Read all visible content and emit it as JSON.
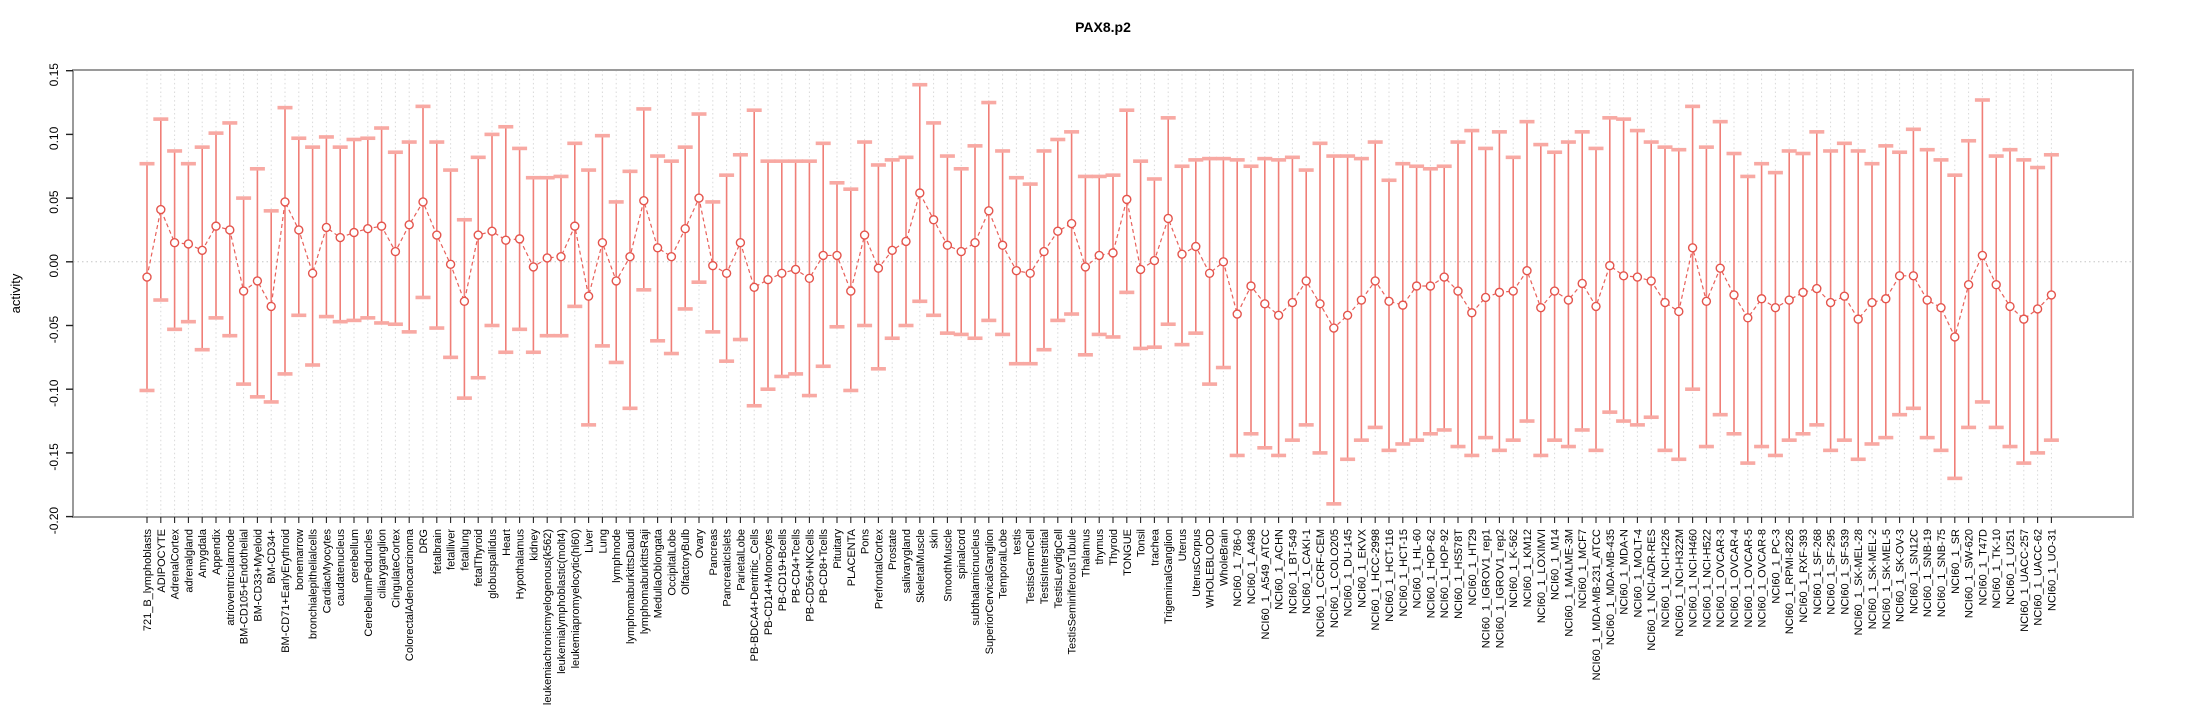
{
  "title": "PAX8.p2",
  "chart_data": {
    "type": "scatter",
    "title": "PAX8.p2",
    "xlabel": "",
    "ylabel": "activity",
    "ylim": [
      -0.2,
      0.15
    ],
    "yticks": [
      0.15,
      0.1,
      0.05,
      0.0,
      -0.05,
      -0.1,
      -0.15,
      -0.2
    ],
    "ytick_labels": [
      "0.15",
      "0.10",
      "0.05",
      "0.00",
      "-0.05",
      "-0.10",
      "-0.15",
      "-0.20"
    ],
    "grid": "vertical-dashed",
    "zero_line": true,
    "legend": "none",
    "point_style": "open-circle",
    "error_bars": true,
    "x_label_rotation": 90,
    "colors": {
      "point": "#e4544c",
      "connector": "#e8605a",
      "stem": "#f07e77",
      "cap": "#f8a9a3",
      "grid": "#d9d9d9",
      "zero_line": "#c6c6c6",
      "box": "#9a9a9a",
      "tick": "#222222",
      "text": "#000000"
    },
    "categories": [
      "721_B_lymphoblasts",
      "ADIPOCYTE",
      "AdrenalCortex",
      "adrenalgland",
      "Amygdala",
      "Appendix",
      "atrioventricularnode",
      "BM-CD105+Endothelial",
      "BM-CD33+Myeloid",
      "BM-CD34+",
      "BM-CD71+EarlyErythroid",
      "bonemarrow",
      "bronchialepithelialcells",
      "CardiacMyocytes",
      "caudatenucleus",
      "cerebellum",
      "CerebellumPeduncles",
      "ciliaryganglion",
      "CingulateCortex",
      "ColorectalAdenocarcinoma",
      "DRG",
      "fetalbrain",
      "fetalliver",
      "fetallung",
      "fetalThyroid",
      "globuspallidus",
      "Heart",
      "Hypothalamus",
      "kidney",
      "leukemiachronicmyelogenous(k562)",
      "leukemialymphoblastic(molt4)",
      "leukemiapromyelocytic(hl60)",
      "Liver",
      "Lung",
      "lymphnode",
      "lymphomaburkittsDaudi",
      "lymphomaburkittsRaji",
      "MedullaOblongata",
      "OccipitalLobe",
      "OlfactoryBulb",
      "Ovary",
      "Pancreas",
      "PancreaticIslets",
      "ParietalLobe",
      "PB-BDCA4+Dentritic_Cells",
      "PB-CD14+Monocytes",
      "PB-CD19+Bcells",
      "PB-CD4+Tcells",
      "PB-CD56+NKCells",
      "PB-CD8+Tcells",
      "Pituitary",
      "PLACENTA",
      "Pons",
      "PrefrontalCortex",
      "Prostate",
      "salivarygland",
      "SkeletalMuscle",
      "skin",
      "SmoothMuscle",
      "spinalcord",
      "subthalamicnucleus",
      "SuperiorCervicalGanglion",
      "TemporalLobe",
      "testis",
      "TestisGermCell",
      "TestisInterstitial",
      "TestisLeydigCell",
      "TestisSeminiferousTubule",
      "Thalamus",
      "thymus",
      "Thyroid",
      "TONGUE",
      "Tonsil",
      "trachea",
      "TrigeminalGanglion",
      "Uterus",
      "UterusCorpus",
      "WHOLEBLOOD",
      "WholeBrain",
      "NCI60_1_786-0",
      "NCI60_1_A498",
      "NCI60_1_A549_ATCC",
      "NCI60_1_ACHN",
      "NCI60_1_BT-549",
      "NCI60_1_CAKI-1",
      "NCI60_1_CCRF-CEM",
      "NCI60_1_COLO205",
      "NCI60_1_DU-145",
      "NCI60_1_EKVX",
      "NCI60_1_HCC-2998",
      "NCI60_1_HCT-116",
      "NCI60_1_HCT-15",
      "NCI60_1_HL-60",
      "NCI60_1_HOP-62",
      "NCI60_1_HOP-92",
      "NCI60_1_HS578T",
      "NCI60_1_HT29",
      "NCI60_1_IGROV1_rep1",
      "NCI60_1_IGROV1_rep2",
      "NCI60_1_K-562",
      "NCI60_1_KM12",
      "NCI60_1_LOXIMVI",
      "NCI60_1_M14",
      "NCI60_1_MALME-3M",
      "NCI60_1_MCF7",
      "NCI60_1_MDA-MB-231_ATCC",
      "NCI60_1_MDA-MB-435",
      "NCI60_1_MDA-N",
      "NCI60_1_MOLT-4",
      "NCI60_1_NCI-ADR-RES",
      "NCI60_1_NCI-H226",
      "NCI60_1_NCI-H322M",
      "NCI60_1_NCI-H460",
      "NCI60_1_NCI-H522",
      "NCI60_1_OVCAR-3",
      "NCI60_1_OVCAR-4",
      "NCI60_1_OVCAR-5",
      "NCI60_1_OVCAR-8",
      "NCI60_1_PC-3",
      "NCI60_1_RPMI-8226",
      "NCI60_1_RXF-393",
      "NCI60_1_SF-268",
      "NCI60_1_SF-295",
      "NCI60_1_SF-539",
      "NCI60_1_SK-MEL-28",
      "NCI60_1_SK-MEL-2",
      "NCI60_1_SK-MEL-5",
      "NCI60_1_SK-OV-3",
      "NCI60_1_SN12C",
      "NCI60_1_SNB-19",
      "NCI60_1_SNB-75",
      "NCI60_1_SR",
      "NCI60_1_SW-620",
      "NCI60_1_T47D",
      "NCI60_1_TK-10",
      "NCI60_1_U251",
      "NCI60_1_UACC-257",
      "NCI60_1_UACC-62",
      "NCI60_1_UO-31"
    ],
    "series": [
      {
        "name": "activity",
        "values": [
          -0.012,
          0.041,
          0.015,
          0.014,
          0.009,
          0.028,
          0.025,
          -0.023,
          -0.015,
          -0.035,
          0.047,
          0.025,
          -0.009,
          0.027,
          0.019,
          0.023,
          0.026,
          0.028,
          0.008,
          0.029,
          0.047,
          0.021,
          -0.002,
          -0.031,
          0.021,
          0.024,
          0.017,
          0.018,
          -0.004,
          0.003,
          0.004,
          0.028,
          -0.027,
          0.015,
          -0.015,
          0.004,
          0.048,
          0.011,
          0.004,
          0.026,
          0.05,
          -0.003,
          -0.009,
          0.015,
          -0.02,
          -0.014,
          -0.009,
          -0.006,
          -0.013,
          0.005,
          0.005,
          -0.023,
          0.021,
          -0.005,
          0.009,
          0.016,
          0.054,
          0.033,
          0.013,
          0.008,
          0.015,
          0.04,
          0.013,
          -0.007,
          -0.009,
          0.008,
          0.024,
          0.03,
          -0.004,
          0.005,
          0.007,
          0.049,
          -0.006,
          0.001,
          0.034,
          0.006,
          0.012,
          -0.009,
          0.0,
          -0.041,
          -0.019,
          -0.033,
          -0.042,
          -0.032,
          -0.015,
          -0.033,
          -0.052,
          -0.042,
          -0.03,
          -0.015,
          -0.031,
          -0.034,
          -0.019,
          -0.019,
          -0.012,
          -0.023,
          -0.04,
          -0.028,
          -0.024,
          -0.023,
          -0.007,
          -0.036,
          -0.023,
          -0.03,
          -0.017,
          -0.035,
          -0.003,
          -0.011,
          -0.012,
          -0.015,
          -0.032,
          -0.039,
          0.011,
          -0.031,
          -0.005,
          -0.026,
          -0.044,
          -0.029,
          -0.036,
          -0.03,
          -0.024,
          -0.021,
          -0.032,
          -0.027,
          -0.045,
          -0.032,
          -0.029,
          -0.011,
          -0.011,
          -0.03,
          -0.036,
          -0.059,
          -0.018,
          0.005,
          -0.018,
          -0.035,
          -0.045,
          -0.037,
          -0.026
        ],
        "lower": [
          -0.101,
          -0.03,
          -0.053,
          -0.047,
          -0.069,
          -0.044,
          -0.058,
          -0.096,
          -0.106,
          -0.11,
          -0.088,
          -0.042,
          -0.081,
          -0.043,
          -0.047,
          -0.046,
          -0.044,
          -0.048,
          -0.049,
          -0.055,
          -0.028,
          -0.052,
          -0.075,
          -0.107,
          -0.091,
          -0.05,
          -0.071,
          -0.053,
          -0.071,
          -0.058,
          -0.058,
          -0.035,
          -0.128,
          -0.066,
          -0.079,
          -0.115,
          -0.022,
          -0.062,
          -0.072,
          -0.037,
          -0.016,
          -0.055,
          -0.078,
          -0.061,
          -0.113,
          -0.1,
          -0.09,
          -0.088,
          -0.105,
          -0.082,
          -0.051,
          -0.101,
          -0.05,
          -0.084,
          -0.06,
          -0.05,
          -0.031,
          -0.042,
          -0.056,
          -0.057,
          -0.06,
          -0.046,
          -0.057,
          -0.08,
          -0.08,
          -0.069,
          -0.046,
          -0.041,
          -0.073,
          -0.057,
          -0.059,
          -0.024,
          -0.068,
          -0.067,
          -0.049,
          -0.065,
          -0.056,
          -0.096,
          -0.083,
          -0.152,
          -0.135,
          -0.146,
          -0.152,
          -0.14,
          -0.128,
          -0.15,
          -0.19,
          -0.155,
          -0.14,
          -0.13,
          -0.148,
          -0.143,
          -0.14,
          -0.135,
          -0.132,
          -0.145,
          -0.152,
          -0.138,
          -0.148,
          -0.14,
          -0.125,
          -0.152,
          -0.14,
          -0.145,
          -0.132,
          -0.148,
          -0.118,
          -0.125,
          -0.128,
          -0.122,
          -0.148,
          -0.155,
          -0.1,
          -0.145,
          -0.12,
          -0.135,
          -0.158,
          -0.145,
          -0.152,
          -0.14,
          -0.135,
          -0.128,
          -0.148,
          -0.14,
          -0.155,
          -0.143,
          -0.138,
          -0.12,
          -0.115,
          -0.138,
          -0.148,
          -0.17,
          -0.13,
          -0.11,
          -0.13,
          -0.145,
          -0.158,
          -0.15,
          -0.14
        ],
        "upper": [
          0.077,
          0.112,
          0.087,
          0.077,
          0.09,
          0.101,
          0.109,
          0.05,
          0.073,
          0.04,
          0.121,
          0.097,
          0.09,
          0.098,
          0.09,
          0.096,
          0.097,
          0.105,
          0.086,
          0.094,
          0.122,
          0.094,
          0.072,
          0.033,
          0.082,
          0.1,
          0.106,
          0.089,
          0.066,
          0.066,
          0.067,
          0.093,
          0.072,
          0.099,
          0.047,
          0.071,
          0.12,
          0.083,
          0.079,
          0.09,
          0.116,
          0.047,
          0.068,
          0.084,
          0.119,
          0.079,
          0.079,
          0.079,
          0.079,
          0.093,
          0.062,
          0.057,
          0.094,
          0.076,
          0.08,
          0.082,
          0.139,
          0.109,
          0.083,
          0.073,
          0.091,
          0.125,
          0.087,
          0.066,
          0.061,
          0.087,
          0.096,
          0.102,
          0.067,
          0.067,
          0.068,
          0.119,
          0.079,
          0.065,
          0.113,
          0.075,
          0.08,
          0.081,
          0.081,
          0.08,
          0.075,
          0.081,
          0.08,
          0.082,
          0.072,
          0.093,
          0.083,
          0.083,
          0.081,
          0.094,
          0.064,
          0.077,
          0.075,
          0.073,
          0.075,
          0.094,
          0.103,
          0.089,
          0.102,
          0.082,
          0.11,
          0.092,
          0.086,
          0.094,
          0.102,
          0.089,
          0.113,
          0.112,
          0.103,
          0.094,
          0.09,
          0.088,
          0.122,
          0.09,
          0.11,
          0.085,
          0.067,
          0.077,
          0.07,
          0.087,
          0.085,
          0.102,
          0.087,
          0.093,
          0.087,
          0.077,
          0.091,
          0.086,
          0.104,
          0.088,
          0.08,
          0.068,
          0.095,
          0.127,
          0.083,
          0.088,
          0.08,
          0.074,
          0.084
        ]
      }
    ]
  }
}
